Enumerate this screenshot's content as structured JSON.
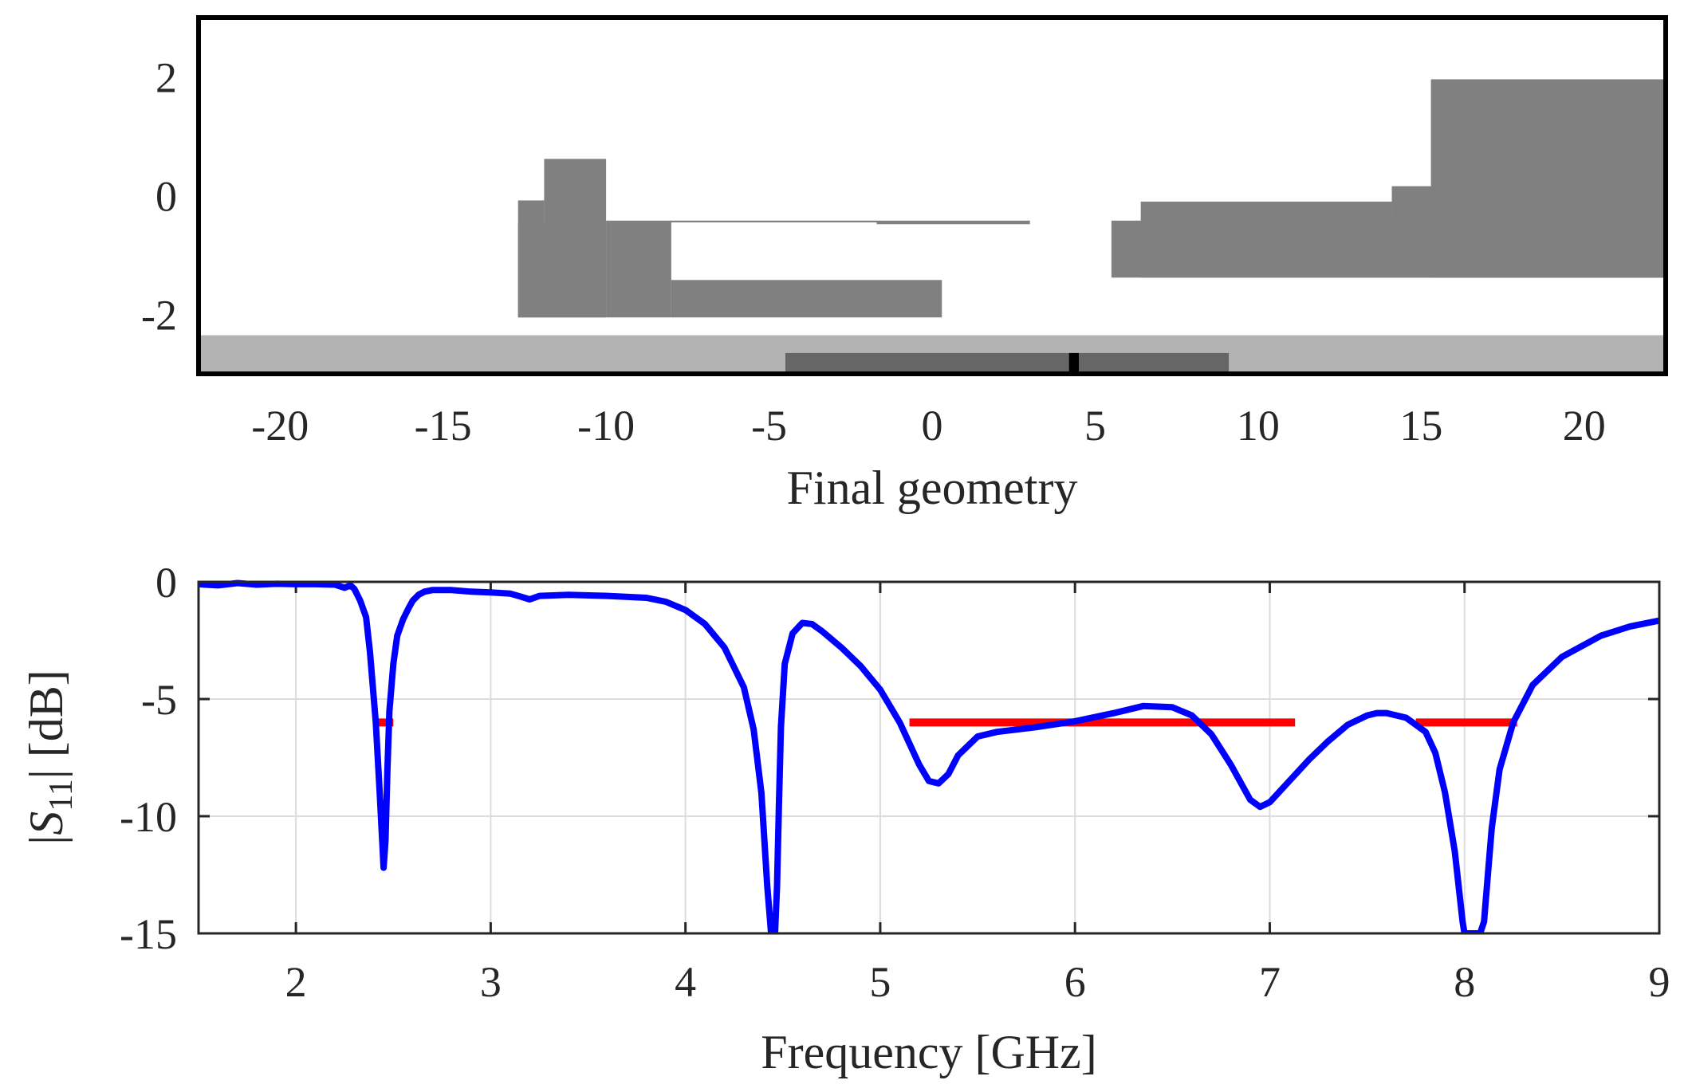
{
  "chart_data": [
    {
      "type": "geometry",
      "xlabel": "Final geometry",
      "xlim": [
        -22.5,
        22.5
      ],
      "ylim": [
        -3,
        3
      ],
      "xticks": [
        -20,
        -15,
        -10,
        -5,
        0,
        5,
        10,
        15,
        20
      ],
      "xtick_labels": [
        "-20",
        "-15",
        "-10",
        "-5",
        "0",
        "5",
        "10",
        "15",
        "20"
      ],
      "yticks": [
        -2,
        0,
        2
      ],
      "ytick_labels": [
        "-2",
        "0",
        "2"
      ],
      "colors": {
        "metal": "#808080",
        "substrate": "#b3b3b3",
        "ground": "#666666",
        "feed": "#000000"
      },
      "substrate": {
        "x": [
          -22.5,
          22.5
        ],
        "y": [
          -3,
          -2.35
        ]
      },
      "ground": {
        "x": [
          -4.5,
          9.1
        ],
        "y": [
          -3,
          -2.65
        ]
      },
      "feed": {
        "x": [
          4.2,
          4.5
        ],
        "y": [
          -3,
          -2.65
        ]
      },
      "patches": [
        {
          "x": [
            -12.7,
            -10
          ],
          "y": [
            -2.05,
            -0.45
          ]
        },
        {
          "x": [
            -12.7,
            -11.9
          ],
          "y": [
            -2.05,
            -0.08
          ]
        },
        {
          "x": [
            -11.9,
            -10
          ],
          "y": [
            -2.05,
            0.62
          ]
        },
        {
          "x": [
            -10,
            -8
          ],
          "y": [
            -2.05,
            -0.45
          ]
        },
        {
          "x": [
            -8,
            0.3
          ],
          "y": [
            -2.05,
            -1.42
          ]
        },
        {
          "x": [
            -10,
            -1.7
          ],
          "y": [
            -0.45,
            -0.42
          ]
        },
        {
          "x": [
            -1.7,
            3
          ],
          "y": [
            -0.48,
            -0.42
          ]
        },
        {
          "x": [
            5.5,
            22.5
          ],
          "y": [
            -1.38,
            -0.42
          ]
        },
        {
          "x": [
            6.4,
            14.1
          ],
          "y": [
            -1.38,
            -0.1
          ]
        },
        {
          "x": [
            14.1,
            22.5
          ],
          "y": [
            -1.38,
            0.16
          ]
        },
        {
          "x": [
            15.3,
            22.5
          ],
          "y": [
            -1.38,
            1.96
          ]
        }
      ]
    },
    {
      "type": "line",
      "xlabel": "Frequency [GHz]",
      "ylabel_pre": "|",
      "ylabel_var": "S",
      "ylabel_sub": "11",
      "ylabel_post": "| [dB]",
      "xlim": [
        1.5,
        9
      ],
      "ylim": [
        -15,
        0
      ],
      "xticks": [
        2,
        3,
        4,
        5,
        6,
        7,
        8,
        9
      ],
      "xtick_labels": [
        "2",
        "3",
        "4",
        "5",
        "6",
        "7",
        "8",
        "9"
      ],
      "yticks": [
        0,
        -5,
        -10,
        -15
      ],
      "ytick_labels": [
        "0",
        "-5",
        "-10",
        "-15"
      ],
      "grid": true,
      "series": [
        {
          "name": "|S11|",
          "color": "#0000ff",
          "x": [
            1.5,
            1.6,
            1.7,
            1.8,
            1.9,
            2.0,
            2.1,
            2.2,
            2.25,
            2.28,
            2.3,
            2.33,
            2.36,
            2.38,
            2.41,
            2.43,
            2.45,
            2.46,
            2.47,
            2.48,
            2.5,
            2.52,
            2.55,
            2.58,
            2.6,
            2.63,
            2.66,
            2.7,
            2.8,
            2.9,
            3.0,
            3.1,
            3.15,
            3.2,
            3.25,
            3.4,
            3.6,
            3.8,
            3.9,
            4.0,
            4.1,
            4.2,
            4.3,
            4.35,
            4.39,
            4.42,
            4.44,
            4.45,
            4.46,
            4.47,
            4.48,
            4.49,
            4.51,
            4.55,
            4.6,
            4.65,
            4.7,
            4.8,
            4.9,
            5.0,
            5.1,
            5.2,
            5.25,
            5.3,
            5.35,
            5.4,
            5.5,
            5.6,
            5.8,
            6.0,
            6.2,
            6.35,
            6.5,
            6.6,
            6.7,
            6.8,
            6.9,
            6.95,
            7.0,
            7.1,
            7.2,
            7.3,
            7.4,
            7.5,
            7.55,
            7.6,
            7.7,
            7.8,
            7.85,
            7.9,
            7.95,
            7.99,
            8.0,
            8.02,
            8.05,
            8.08,
            8.1,
            8.12,
            8.14,
            8.18,
            8.25,
            8.35,
            8.5,
            8.7,
            8.85,
            9.0
          ],
          "values": [
            -0.1,
            -0.15,
            -0.05,
            -0.12,
            -0.08,
            -0.1,
            -0.1,
            -0.12,
            -0.25,
            -0.15,
            -0.3,
            -0.8,
            -1.5,
            -3.0,
            -6.0,
            -9.0,
            -12.2,
            -11.0,
            -8.0,
            -5.5,
            -3.5,
            -2.3,
            -1.6,
            -1.1,
            -0.8,
            -0.55,
            -0.42,
            -0.35,
            -0.35,
            -0.42,
            -0.45,
            -0.5,
            -0.62,
            -0.75,
            -0.6,
            -0.55,
            -0.6,
            -0.68,
            -0.85,
            -1.2,
            -1.8,
            -2.8,
            -4.5,
            -6.3,
            -9.0,
            -13.0,
            -15.0,
            -15.0,
            -15.0,
            -13.0,
            -9.5,
            -6.2,
            -3.5,
            -2.2,
            -1.75,
            -1.8,
            -2.1,
            -2.8,
            -3.6,
            -4.6,
            -6.0,
            -7.8,
            -8.5,
            -8.6,
            -8.2,
            -7.4,
            -6.6,
            -6.4,
            -6.2,
            -5.95,
            -5.6,
            -5.3,
            -5.35,
            -5.7,
            -6.5,
            -7.8,
            -9.3,
            -9.6,
            -9.4,
            -8.5,
            -7.6,
            -6.8,
            -6.1,
            -5.7,
            -5.6,
            -5.6,
            -5.8,
            -6.4,
            -7.3,
            -9.0,
            -11.5,
            -14.5,
            -15.0,
            -15.0,
            -15.0,
            -15.0,
            -14.5,
            -12.5,
            -10.5,
            -8.0,
            -6.0,
            -4.4,
            -3.2,
            -2.3,
            -1.9,
            -1.65
          ]
        }
      ],
      "specs": {
        "color": "#ff0000",
        "level": -6,
        "bands": [
          [
            2.42,
            2.5
          ],
          [
            5.15,
            7.13
          ],
          [
            7.75,
            8.27
          ]
        ]
      }
    }
  ]
}
